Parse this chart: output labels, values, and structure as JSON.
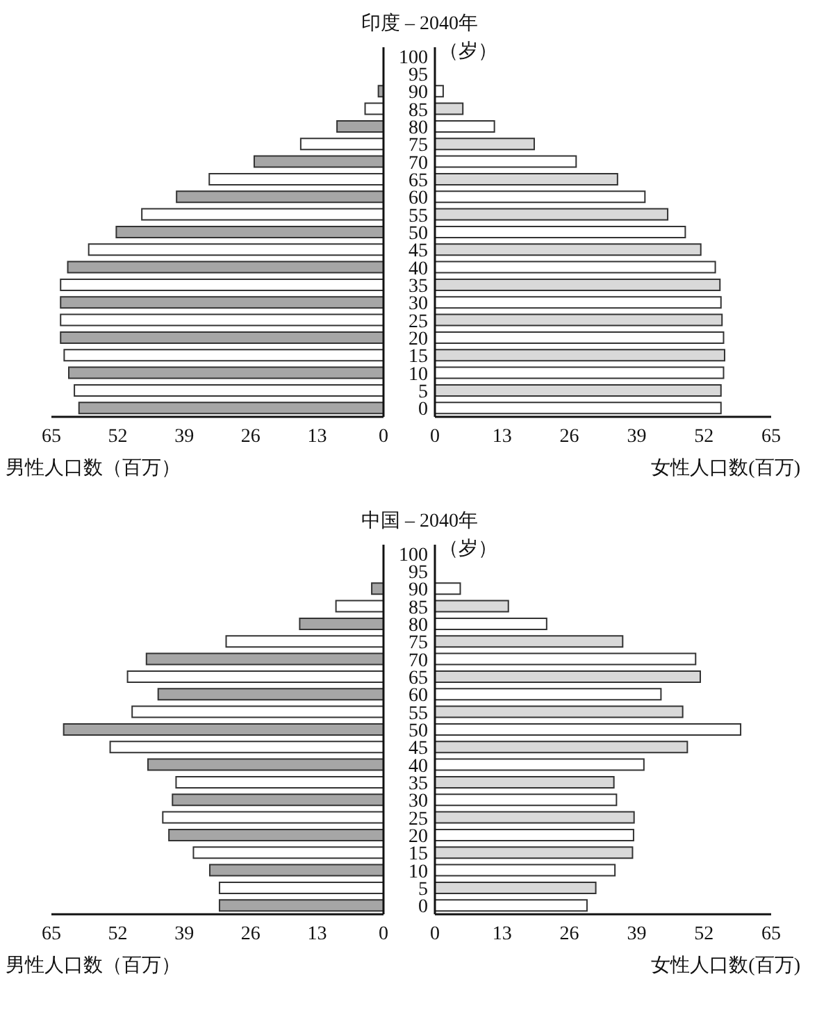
{
  "chart_data": [
    {
      "type": "bar",
      "orientation": "horizontal",
      "title": "印度 – 2040年",
      "xlabel": "男性人口数（百万）",
      "tick_labels": "x",
      "categories": [
        "100",
        "95",
        "90",
        "85",
        "80",
        "75",
        "70",
        "65",
        "60",
        "55",
        "50",
        "45",
        "40",
        "35",
        "30",
        "25",
        "20",
        "15",
        "10",
        "5",
        "0"
      ],
      "xlim": [
        65,
        0
      ],
      "xticks": [
        65,
        52,
        39,
        26,
        13,
        0
      ],
      "series": [
        {
          "values": [
            null,
            null,
            1,
            3.6,
            9.1,
            16.2,
            25.3,
            34.1,
            40.5,
            47.3,
            52.3,
            57.7,
            61.8,
            63.2,
            63.2,
            63.2,
            63.2,
            62.5,
            61.6,
            60.5,
            59.6
          ],
          "colors": [
            null,
            null,
            "#a6a6a6",
            "#ffffff",
            "#a6a6a6",
            "#ffffff",
            "#a6a6a6",
            "#ffffff",
            "#a6a6a6",
            "#ffffff",
            "#a6a6a6",
            "#ffffff",
            "#a6a6a6",
            "#ffffff",
            "#a6a6a6",
            "#ffffff",
            "#a6a6a6",
            "#ffffff",
            "#a6a6a6",
            "#ffffff",
            "#a6a6a6"
          ]
        }
      ]
    },
    {
      "type": "bar",
      "orientation": "horizontal",
      "xlabel": "女性人口数(百万)",
      "annotations": [
        "（岁）"
      ],
      "categories": [
        "100",
        "95",
        "90",
        "85",
        "80",
        "75",
        "70",
        "65",
        "60",
        "55",
        "50",
        "45",
        "40",
        "35",
        "30",
        "25",
        "20",
        "15",
        "10",
        "5",
        "0"
      ],
      "xlim": [
        0,
        65
      ],
      "xticks": [
        0,
        13,
        26,
        39,
        52,
        65
      ],
      "series": [
        {
          "values": [
            null,
            null,
            1.6,
            5.4,
            11.5,
            19.2,
            27.3,
            35.3,
            40.6,
            45,
            48.4,
            51.4,
            54.2,
            55.1,
            55.3,
            55.5,
            55.8,
            56,
            55.8,
            55.3,
            55.3
          ],
          "colors": [
            null,
            null,
            "#ffffff",
            "#d9d9d9",
            "#ffffff",
            "#d9d9d9",
            "#ffffff",
            "#d9d9d9",
            "#ffffff",
            "#d9d9d9",
            "#ffffff",
            "#d9d9d9",
            "#ffffff",
            "#d9d9d9",
            "#ffffff",
            "#d9d9d9",
            "#ffffff",
            "#d9d9d9",
            "#ffffff",
            "#d9d9d9",
            "#ffffff"
          ]
        }
      ]
    },
    {
      "type": "bar",
      "orientation": "horizontal",
      "title": "中国 – 2040年",
      "xlabel": "男性人口数（百万）",
      "tick_labels": "x",
      "categories": [
        "100",
        "95",
        "90",
        "85",
        "80",
        "75",
        "70",
        "65",
        "60",
        "55",
        "50",
        "45",
        "40",
        "35",
        "30",
        "25",
        "20",
        "15",
        "10",
        "5",
        "0"
      ],
      "xlim": [
        65,
        0
      ],
      "xticks": [
        65,
        52,
        39,
        26,
        13,
        0
      ],
      "series": [
        {
          "values": [
            null,
            null,
            2.3,
            9.3,
            16.4,
            30.8,
            46.4,
            50.1,
            44.1,
            49.2,
            62.6,
            53.5,
            46.1,
            40.6,
            41.3,
            43.2,
            42,
            37.2,
            34,
            32.1,
            32.1
          ],
          "colors": [
            null,
            null,
            "#a6a6a6",
            "#ffffff",
            "#a6a6a6",
            "#ffffff",
            "#a6a6a6",
            "#ffffff",
            "#a6a6a6",
            "#ffffff",
            "#a6a6a6",
            "#ffffff",
            "#a6a6a6",
            "#ffffff",
            "#a6a6a6",
            "#ffffff",
            "#a6a6a6",
            "#ffffff",
            "#a6a6a6",
            "#ffffff",
            "#a6a6a6"
          ]
        }
      ]
    },
    {
      "type": "bar",
      "orientation": "horizontal",
      "xlabel": "女性人口数(百万)",
      "annotations": [
        "（岁）"
      ],
      "categories": [
        "100",
        "95",
        "90",
        "85",
        "80",
        "75",
        "70",
        "65",
        "60",
        "55",
        "50",
        "45",
        "40",
        "35",
        "30",
        "25",
        "20",
        "15",
        "10",
        "5",
        "0"
      ],
      "xlim": [
        0,
        65
      ],
      "xticks": [
        0,
        13,
        26,
        39,
        52,
        65
      ],
      "series": [
        {
          "values": [
            null,
            null,
            4.9,
            14.2,
            21.6,
            36.3,
            50.4,
            51.3,
            43.7,
            47.9,
            59.1,
            48.8,
            40.4,
            34.6,
            35.1,
            38.5,
            38.4,
            38.2,
            34.8,
            31.1,
            29.4
          ],
          "colors": [
            null,
            null,
            "#ffffff",
            "#d9d9d9",
            "#ffffff",
            "#d9d9d9",
            "#ffffff",
            "#d9d9d9",
            "#ffffff",
            "#d9d9d9",
            "#ffffff",
            "#d9d9d9",
            "#ffffff",
            "#d9d9d9",
            "#ffffff",
            "#d9d9d9",
            "#ffffff",
            "#d9d9d9",
            "#ffffff",
            "#d9d9d9",
            "#ffffff"
          ]
        }
      ]
    }
  ]
}
